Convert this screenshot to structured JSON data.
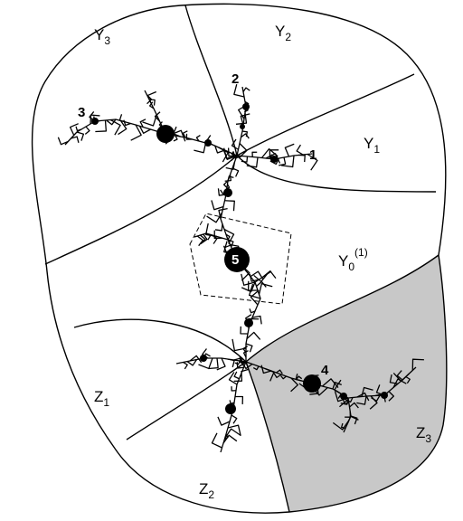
{
  "regions": [
    {
      "base": "Y",
      "sub": "3"
    },
    {
      "base": "Y",
      "sub": "2"
    },
    {
      "base": "Y",
      "sub": "1"
    },
    {
      "base": "Y",
      "sub": "0",
      "sup": "(1)"
    },
    {
      "base": "Z",
      "sub": "1"
    },
    {
      "base": "Z",
      "sub": "2"
    },
    {
      "base": "Z",
      "sub": "3"
    }
  ],
  "points": [
    "1",
    "2",
    "3",
    "4",
    "5"
  ]
}
